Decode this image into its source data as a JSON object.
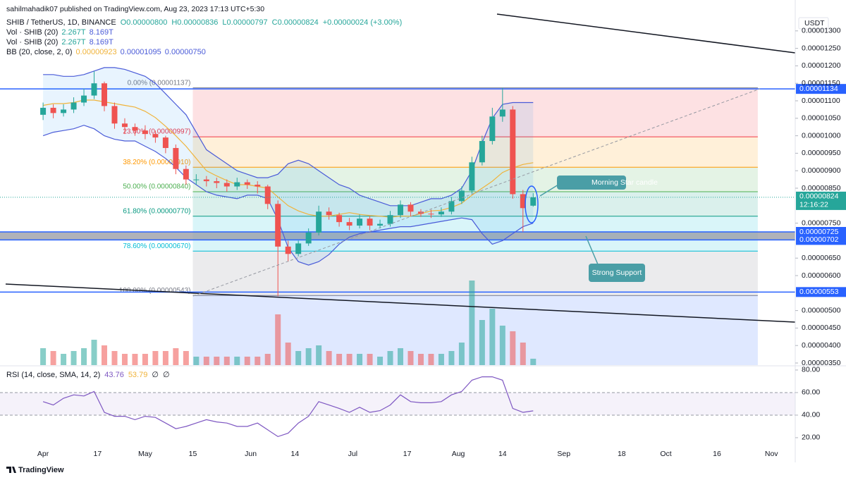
{
  "chart_data": {
    "type": "candlestick",
    "publisher": "sahilmahadik07 published on TradingView.com, Aug 23, 2023 17:13 UTC+5:30",
    "title": "SHIB / TetherUS, 1D, BINANCE",
    "ohlc_legend": [
      "O0.00000800",
      "H0.00000836",
      "L0.00000797",
      "C0.00000824",
      "+0.00000024 (+3.00%)"
    ],
    "indicator_legends": [
      {
        "name": "Vol · SHIB (20)",
        "values": [
          "2.267T",
          "8.169T"
        ]
      },
      {
        "name": "Vol · SHIB (20)",
        "values": [
          "2.267T",
          "8.169T"
        ]
      },
      {
        "name": "BB (20, close, 2, 0)",
        "values": [
          "0.00000923",
          "0.00001095",
          "0.00000750"
        ]
      }
    ],
    "currency": "USDT",
    "up_color": "#26a69a",
    "down_color": "#ef5350",
    "x": [
      "Apr 1",
      "Apr 4",
      "Apr 7",
      "Apr 10",
      "Apr 13",
      "Apr 16",
      "Apr 19",
      "Apr 22",
      "Apr 25",
      "Apr 28",
      "May 1",
      "May 4",
      "May 7",
      "May 10",
      "May 13",
      "May 16",
      "May 19",
      "May 22",
      "May 25",
      "May 28",
      "May 31",
      "Jun 3",
      "Jun 6",
      "Jun 9",
      "Jun 12",
      "Jun 15",
      "Jun 18",
      "Jun 21",
      "Jun 24",
      "Jun 27",
      "Jun 30",
      "Jul 3",
      "Jul 6",
      "Jul 9",
      "Jul 12",
      "Jul 15",
      "Jul 18",
      "Jul 21",
      "Jul 24",
      "Jul 27",
      "Jul 30",
      "Aug 2",
      "Aug 5",
      "Aug 8",
      "Aug 11",
      "Aug 14",
      "Aug 17",
      "Aug 20",
      "Aug 23"
    ],
    "open": [
      1.06e-05,
      1.08e-05,
      1.065e-05,
      1.075e-05,
      1.095e-05,
      1.115e-05,
      1.15e-05,
      1.085e-05,
      1.035e-05,
      1.025e-05,
      1.015e-05,
      1.005e-05,
      9.95e-06,
      9.65e-06,
      9.05e-06,
      8.75e-06,
      8.75e-06,
      8.7e-06,
      8.65e-06,
      8.55e-06,
      8.67e-06,
      8.6e-06,
      8.55e-06,
      8.05e-06,
      6.83e-06,
      6.62e-06,
      6.92e-06,
      7.23e-06,
      7.83e-06,
      7.73e-06,
      7.53e-06,
      7.43e-06,
      7.63e-06,
      7.43e-06,
      7.48e-06,
      7.73e-06,
      8.03e-06,
      7.83e-06,
      7.77e-06,
      7.75e-06,
      7.83e-06,
      8.13e-06,
      8.43e-06,
      9.24e-06,
      9.85e-06,
      1.055e-05,
      1.075e-05,
      8.33e-06,
      8e-06
    ],
    "high": [
      1.095e-05,
      1.09e-05,
      1.09e-05,
      1.11e-05,
      1.135e-05,
      1.185e-05,
      1.155e-05,
      1.095e-05,
      1.05e-05,
      1.035e-05,
      1.03e-05,
      1.015e-05,
      1e-05,
      9.75e-06,
      9.15e-06,
      8.9e-06,
      8.85e-06,
      8.8e-06,
      8.75e-06,
      8.8e-06,
      8.75e-06,
      8.7e-06,
      8.6e-06,
      8.15e-06,
      7e-06,
      7e-06,
      7.35e-06,
      8e-06,
      7.95e-06,
      7.8e-06,
      7.65e-06,
      7.75e-06,
      7.7e-06,
      7.6e-06,
      7.85e-06,
      8.15e-06,
      8.1e-06,
      7.9e-06,
      7.88e-06,
      7.95e-06,
      8.25e-06,
      8.55e-06,
      9.4e-06,
      1e-05,
      1.08e-05,
      1.137e-05,
      1.085e-05,
      8.45e-06,
      8.36e-06
    ],
    "low": [
      1.045e-05,
      1.05e-05,
      1.055e-05,
      1.065e-05,
      1.085e-05,
      1.105e-05,
      1.07e-05,
      1.02e-05,
      1.005e-05,
      1e-05,
      9.9e-06,
      9.8e-06,
      9.5e-06,
      8.9e-06,
      8.6e-06,
      8.6e-06,
      8.55e-06,
      8.5e-06,
      8.4e-06,
      8.45e-06,
      8.48e-06,
      8.35e-06,
      7.9e-06,
      5.41e-06,
      6.4e-06,
      6.55e-06,
      6.85e-06,
      7.15e-06,
      7.6e-06,
      7.4e-06,
      7.3e-06,
      7.35e-06,
      7.3e-06,
      7.35e-06,
      7.4e-06,
      7.65e-06,
      7.7e-06,
      7.68e-06,
      7.65e-06,
      7.68e-06,
      7.75e-06,
      8.05e-06,
      8.35e-06,
      9.15e-06,
      9.75e-06,
      1.04e-05,
      8.2e-06,
      7.25e-06,
      7.97e-06
    ],
    "close": [
      1.08e-05,
      1.065e-05,
      1.075e-05,
      1.095e-05,
      1.115e-05,
      1.15e-05,
      1.085e-05,
      1.035e-05,
      1.025e-05,
      1.015e-05,
      1.005e-05,
      9.95e-06,
      9.65e-06,
      9.05e-06,
      8.75e-06,
      8.75e-06,
      8.7e-06,
      8.65e-06,
      8.55e-06,
      8.67e-06,
      8.6e-06,
      8.55e-06,
      8.05e-06,
      6.83e-06,
      6.62e-06,
      6.92e-06,
      7.23e-06,
      7.83e-06,
      7.73e-06,
      7.53e-06,
      7.43e-06,
      7.63e-06,
      7.43e-06,
      7.48e-06,
      7.73e-06,
      8.03e-06,
      7.83e-06,
      7.77e-06,
      7.75e-06,
      7.83e-06,
      8.13e-06,
      8.43e-06,
      9.24e-06,
      9.85e-06,
      1.055e-05,
      1.075e-05,
      8.33e-06,
      7.93e-06,
      8.24e-06
    ],
    "volume": [
      6,
      5,
      4,
      5,
      6,
      9,
      7,
      5,
      4,
      4,
      4,
      5,
      5,
      6,
      5,
      3,
      3,
      3,
      3,
      3,
      3,
      3,
      4,
      18,
      8,
      5,
      6,
      7,
      5,
      4,
      4,
      4,
      4,
      3,
      5,
      6,
      5,
      4,
      4,
      4,
      5,
      8,
      30,
      16,
      20,
      14,
      12,
      8,
      2.267
    ],
    "bollinger": {
      "band_color": "#4a5bd8",
      "basis_color": "#f0b33a",
      "upper": [
        1.175e-05,
        1.175e-05,
        1.17e-05,
        1.17e-05,
        1.175e-05,
        1.185e-05,
        1.195e-05,
        1.195e-05,
        1.19e-05,
        1.18e-05,
        1.17e-05,
        1.15e-05,
        1.12e-05,
        1.09e-05,
        1.06e-05,
        1.01e-05,
        9.6e-06,
        9.4e-06,
        9.2e-06,
        9e-06,
        8.9e-06,
        8.8e-06,
        8.8e-06,
        8.9e-06,
        9.2e-06,
        9.3e-06,
        9.2e-06,
        9e-06,
        8.8e-06,
        8.6e-06,
        8.5e-06,
        8.3e-06,
        8.2e-06,
        8.1e-06,
        8e-06,
        8e-06,
        8e-06,
        8.1e-06,
        8.2e-06,
        8.2e-06,
        8.3e-06,
        8.5e-06,
        9e-06,
        9.8e-06,
        1.05e-05,
        1.09e-05,
        1.095e-05,
        1.095e-05,
        1.095e-05
      ],
      "basis": [
        1.087e-05,
        1.092e-05,
        1.092e-05,
        1.095e-05,
        1.102e-05,
        1.102e-05,
        1.097e-05,
        1.092e-05,
        1.087e-05,
        1.082e-05,
        1.07e-05,
        1.052e-05,
        1.027e-05,
        1e-05,
        9.7e-06,
        9.35e-06,
        9e-06,
        8.85e-06,
        8.72e-06,
        8.6e-06,
        8.6e-06,
        8.55e-06,
        8.5e-06,
        8.25e-06,
        8e-06,
        7.85e-06,
        7.75e-06,
        7.7e-06,
        7.7e-06,
        7.75e-06,
        7.8e-06,
        7.75e-06,
        7.72e-06,
        7.7e-06,
        7.67e-06,
        7.7e-06,
        7.7e-06,
        7.77e-06,
        7.85e-06,
        7.87e-06,
        7.95e-06,
        8.07e-06,
        8.3e-06,
        8.5e-06,
        8.7e-06,
        8.95e-06,
        9.08e-06,
        9.18e-06,
        9.23e-06
      ],
      "lower": [
        1e-05,
        1.01e-05,
        1.015e-05,
        1.02e-05,
        1.03e-05,
        1.02e-05,
        1e-05,
        9.9e-06,
        9.85e-06,
        9.85e-06,
        9.7e-06,
        9.55e-06,
        9.35e-06,
        9.1e-06,
        8.8e-06,
        8.6e-06,
        8.4e-06,
        8.3e-06,
        8.25e-06,
        8.2e-06,
        8.3e-06,
        8.3e-06,
        8.2e-06,
        7.6e-06,
        6.8e-06,
        6.4e-06,
        6.3e-06,
        6.4e-06,
        6.6e-06,
        6.9e-06,
        7.1e-06,
        7.2e-06,
        7.25e-06,
        7.3e-06,
        7.35e-06,
        7.4e-06,
        7.4e-06,
        7.45e-06,
        7.5e-06,
        7.55e-06,
        7.6e-06,
        7.65e-06,
        7.6e-06,
        7.2e-06,
        6.9e-06,
        7e-06,
        7.2e-06,
        7.4e-06,
        7.5e-06
      ]
    },
    "xlim": [
      "Mar 21",
      "Nov 8"
    ],
    "xticks": [
      {
        "value": "Apr 1",
        "label": "Apr"
      },
      {
        "value": "Apr 17",
        "label": "17"
      },
      {
        "value": "May 1",
        "label": "May"
      },
      {
        "value": "May 15",
        "label": "15"
      },
      {
        "value": "Jun 1",
        "label": "Jun"
      },
      {
        "value": "Jun 14",
        "label": "14"
      },
      {
        "value": "Jul 1",
        "label": "Jul"
      },
      {
        "value": "Jul 17",
        "label": "17"
      },
      {
        "value": "Aug 1",
        "label": "Aug"
      },
      {
        "value": "Aug 14",
        "label": "14"
      },
      {
        "value": "Sep 1",
        "label": "Sep"
      },
      {
        "value": "Sep 18",
        "label": "18"
      },
      {
        "value": "Oct 1",
        "label": "Oct"
      },
      {
        "value": "Oct 16",
        "label": "16"
      },
      {
        "value": "Nov 1",
        "label": "Nov"
      }
    ],
    "ylim": [
      3.48e-06,
      1.348e-05
    ],
    "yticks": [
      {
        "value": 1.3e-05,
        "label": "0.00001300"
      },
      {
        "value": 1.25e-05,
        "label": "0.00001250"
      },
      {
        "value": 1.2e-05,
        "label": "0.00001200"
      },
      {
        "value": 1.15e-05,
        "label": "0.00001150"
      },
      {
        "value": 1.1e-05,
        "label": "0.00001100"
      },
      {
        "value": 1.05e-05,
        "label": "0.00001050"
      },
      {
        "value": 1e-05,
        "label": "0.00001000"
      },
      {
        "value": 9.5e-06,
        "label": "0.00000950"
      },
      {
        "value": 9e-06,
        "label": "0.00000900"
      },
      {
        "value": 8.5e-06,
        "label": "0.00000850"
      },
      {
        "value": 7.5e-06,
        "label": "0.00000750"
      },
      {
        "value": 6.5e-06,
        "label": "0.00000650"
      },
      {
        "value": 6e-06,
        "label": "0.00000600"
      },
      {
        "value": 5e-06,
        "label": "0.00000500"
      },
      {
        "value": 4.5e-06,
        "label": "0.00000450"
      },
      {
        "value": 4e-06,
        "label": "0.00000400"
      },
      {
        "value": 3.5e-06,
        "label": "0.00000350"
      }
    ],
    "fibonacci": {
      "start": "May 15",
      "end": "Oct 28",
      "levels": [
        {
          "value": 1.137e-05,
          "label": "0.00% (0.00001137)",
          "color": "#787b86"
        },
        {
          "value": 9.97e-06,
          "label": "23.60% (0.00000997)",
          "color": "#f23645"
        },
        {
          "value": 9.1e-06,
          "label": "38.20% (0.00000910)",
          "color": "#ff9800"
        },
        {
          "value": 8.4e-06,
          "label": "50.00% (0.00000840)",
          "color": "#4caf50"
        },
        {
          "value": 7.7e-06,
          "label": "61.80% (0.00000770)",
          "color": "#089981"
        },
        {
          "value": 6.7e-06,
          "label": "78.60% (0.00000670)",
          "color": "#00bcd4"
        },
        {
          "value": 5.43e-06,
          "label": "100.00% (0.00000543)",
          "color": "#787b86"
        }
      ]
    },
    "price_labels": [
      {
        "value": 1.134e-05,
        "label": "0.00001134",
        "color": "#2962ff"
      },
      {
        "value": 7.25e-06,
        "label": "0.00000725",
        "color": "#2962ff"
      },
      {
        "value": 7.02e-06,
        "label": "0.00000702",
        "color": "#2962ff"
      },
      {
        "value": 5.53e-06,
        "label": "0.00000553",
        "color": "#2962ff"
      }
    ],
    "last_price": {
      "value": 8.24e-06,
      "label": "0.00000824",
      "countdown": "12:16:22",
      "color": "#26a69a"
    },
    "annotations": [
      "Morning Star candle",
      "Strong Support"
    ],
    "rsi": {
      "legend": "RSI (14, close, SMA, 14, 2)",
      "legend_values": [
        "43.76",
        "53.79",
        "∅",
        "∅"
      ],
      "color": "#7e57c2",
      "values": [
        52,
        49,
        55,
        58,
        57,
        61,
        42.5,
        39,
        39,
        36,
        39,
        38,
        33,
        28,
        30,
        33,
        36,
        34,
        33,
        30,
        30,
        33,
        27,
        21,
        24,
        33,
        39,
        52,
        49,
        46,
        42.5,
        47,
        42.5,
        44,
        49,
        58,
        52,
        51,
        51,
        52,
        58,
        61,
        71,
        74,
        74,
        71,
        46,
        42.5,
        43.76
      ],
      "ylim": [
        10.6,
        83.1
      ],
      "yticks": [
        {
          "value": 80,
          "label": "80.00"
        },
        {
          "value": 60,
          "label": "60.00"
        },
        {
          "value": 40,
          "label": "40.00"
        },
        {
          "value": 20,
          "label": "20.00"
        }
      ]
    },
    "watermark": "TradingView"
  }
}
